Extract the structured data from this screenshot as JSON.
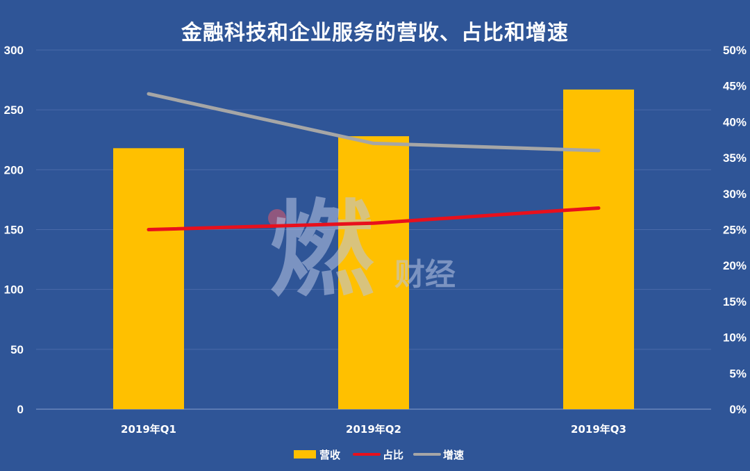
{
  "chart_data": {
    "type": "bar",
    "title": "金融科技和企业服务的营收、占比和增速",
    "categories": [
      "2019年Q1",
      "2019年Q2",
      "2019年Q3"
    ],
    "series": [
      {
        "name": "营收",
        "kind": "bar",
        "axis": "left",
        "values": [
          218,
          228,
          267
        ]
      },
      {
        "name": "占比",
        "kind": "line",
        "axis": "right",
        "values": [
          25.0,
          25.9,
          28.0
        ]
      },
      {
        "name": "增速",
        "kind": "line",
        "axis": "right",
        "values": [
          43.9,
          37.0,
          36.0
        ]
      }
    ],
    "y_left": {
      "min": 0,
      "max": 300,
      "ticks": [
        "0",
        "50",
        "100",
        "150",
        "200",
        "250",
        "300"
      ]
    },
    "y_right": {
      "min": 0,
      "max": 50,
      "ticks": [
        "0%",
        "5%",
        "10%",
        "15%",
        "20%",
        "25%",
        "30%",
        "35%",
        "40%",
        "45%",
        "50%"
      ]
    },
    "grid": true,
    "legend_position": "bottom"
  },
  "colors": {
    "background": "#2f5597",
    "bar": "#ffc000",
    "share_line": "#e8101c",
    "growth_line": "#a6a6a6",
    "gridline": "#4a6aa8",
    "text": "#ffffff"
  },
  "watermark": {
    "glyph": "燃",
    "text": "财经"
  }
}
